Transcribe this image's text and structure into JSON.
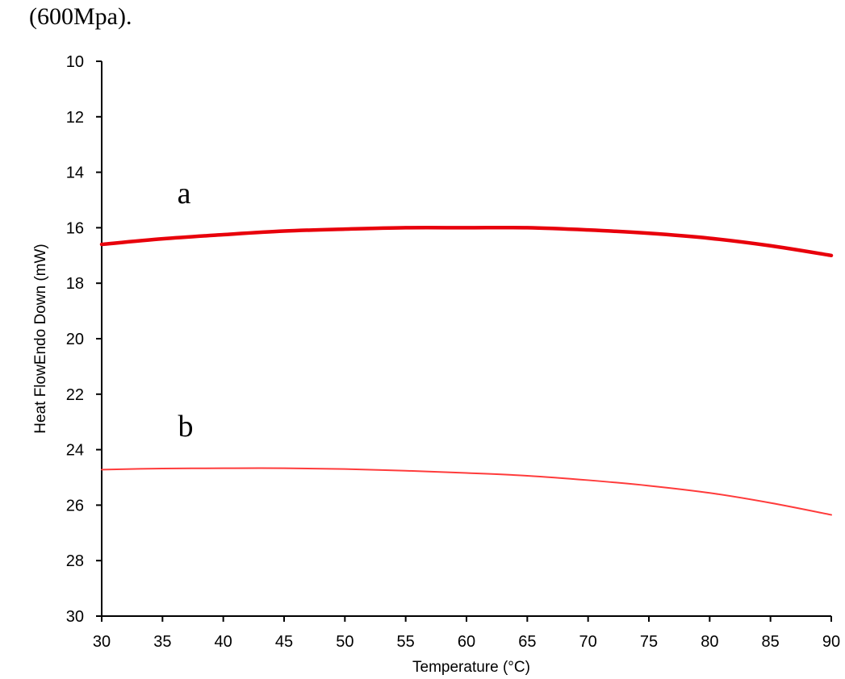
{
  "caption": "(600Mpa).",
  "chart_data": {
    "type": "line",
    "xlabel": "Temperature (°C)",
    "ylabel": "Heat FlowEndo Down (mW)",
    "xlim": [
      30,
      90
    ],
    "ylim": [
      10,
      30
    ],
    "y_inverted": true,
    "xticks": [
      30,
      35,
      40,
      45,
      50,
      55,
      60,
      65,
      70,
      75,
      80,
      85,
      90
    ],
    "yticks": [
      10,
      12,
      14,
      16,
      18,
      20,
      22,
      24,
      26,
      28,
      30
    ],
    "grid": false,
    "series": [
      {
        "name": "a",
        "color": "#e8000b",
        "x": [
          30,
          35,
          40,
          45,
          50,
          55,
          60,
          65,
          70,
          75,
          80,
          85,
          90
        ],
        "y": [
          16.6,
          16.4,
          16.25,
          16.12,
          16.05,
          16.0,
          16.0,
          16.0,
          16.08,
          16.2,
          16.38,
          16.65,
          17.0
        ]
      },
      {
        "name": "b",
        "color": "#ff3b3b",
        "x": [
          30,
          35,
          40,
          45,
          50,
          55,
          60,
          65,
          70,
          75,
          80,
          85,
          90
        ],
        "y": [
          24.72,
          24.68,
          24.67,
          24.67,
          24.7,
          24.76,
          24.84,
          24.94,
          25.1,
          25.3,
          25.56,
          25.92,
          26.35
        ]
      }
    ]
  }
}
